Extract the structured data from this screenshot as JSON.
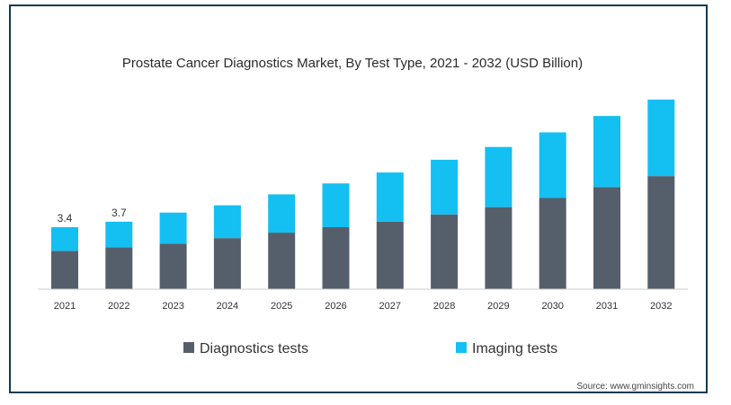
{
  "chart_data": {
    "type": "bar",
    "stacked": true,
    "title": "Prostate Cancer Diagnostics Market, By Test Type, 2021 - 2032 (USD Billion)",
    "xlabel": "",
    "ylabel": "",
    "categories": [
      "2021",
      "2022",
      "2023",
      "2024",
      "2025",
      "2026",
      "2027",
      "2028",
      "2029",
      "2030",
      "2031",
      "2032"
    ],
    "series": [
      {
        "name": "Diagnostics tests",
        "color": "#555f6b",
        "values": [
          2.1,
          2.3,
          2.5,
          2.8,
          3.1,
          3.4,
          3.7,
          4.1,
          4.5,
          5.0,
          5.6,
          6.2
        ]
      },
      {
        "name": "Imaging tests",
        "color": "#14bff2",
        "values": [
          1.3,
          1.4,
          1.7,
          1.8,
          2.1,
          2.4,
          2.7,
          3.0,
          3.3,
          3.6,
          3.9,
          4.2
        ]
      }
    ],
    "data_labels": [
      {
        "index": 0,
        "text": "3.4"
      },
      {
        "index": 1,
        "text": "3.7"
      }
    ],
    "ylim": [
      0,
      11
    ],
    "grid": false,
    "legend_position": "bottom"
  },
  "source": "Source: www.gminsights.com"
}
